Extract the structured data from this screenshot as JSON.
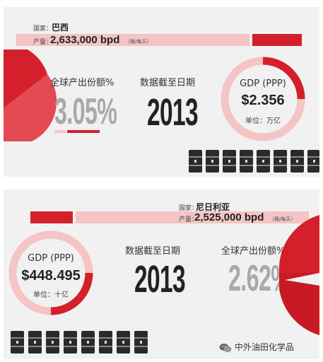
{
  "top": {
    "country_label": "国家：",
    "country": "巴西",
    "production_label": "产量：",
    "production": "2,633,000 bpd",
    "production_unit": "（桶/每天）",
    "share_title": "全球产出份额%",
    "share_value": "3.05%",
    "date_title": "数据截至日期",
    "date_value": "2013",
    "gdp_label": "GDP (PPP)",
    "gdp_value": "$2.356",
    "gdp_unit": "单位：万亿"
  },
  "bottom": {
    "country_label": "国家：",
    "country": "尼日利亚",
    "production_label": "产量：",
    "production": "2,525,000 bpd",
    "production_unit": "（桶/每天）",
    "gdp_label": "GDP (PPP)",
    "gdp_value": "$448.495",
    "gdp_unit": "单位：十亿",
    "date_title": "数据截至日期",
    "date_value": "2013",
    "share_title": "全球产出份额%",
    "share_value": "2.62%"
  },
  "watermark": {
    "text": "中外油田化学品",
    "icon": "wechat-icon"
  },
  "colors": {
    "red": "#d4202a",
    "pink": "#f5c4c4",
    "gray_text": "#a9a9a9",
    "barrel": "#2a2a2a"
  }
}
